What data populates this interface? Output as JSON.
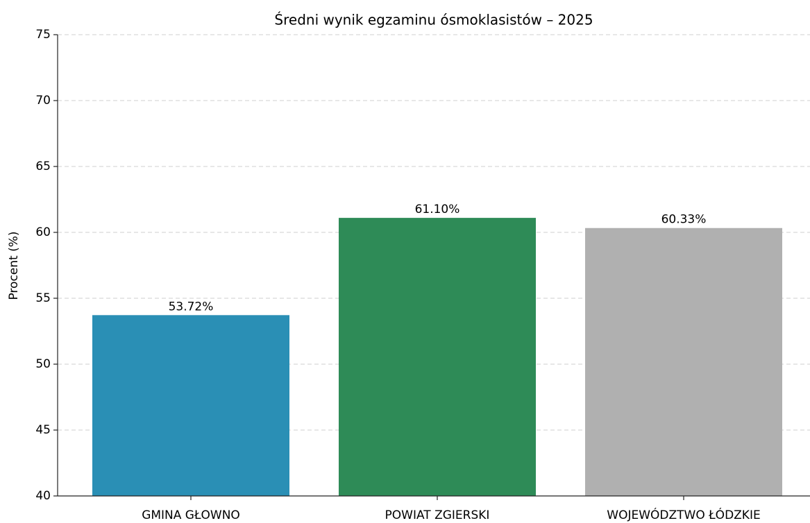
{
  "chart_data": {
    "type": "bar",
    "title": "Średni wynik egzaminu ósmoklasistów – 2025",
    "ylabel": "Procent (%)",
    "categories": [
      "GMINA GŁOWNO",
      "POWIAT ZGIERSKI",
      "WOJEWÓDZTWO ŁÓDZKIE"
    ],
    "values": [
      53.72,
      61.1,
      60.33
    ],
    "value_labels": [
      "53.72%",
      "61.10%",
      "60.33%"
    ],
    "colors": [
      "#2a8fb5",
      "#2e8b57",
      "#b0b0b0"
    ],
    "ylim": [
      40,
      75
    ],
    "yticks": [
      40,
      45,
      50,
      55,
      60,
      65,
      70,
      75
    ],
    "grid": true
  }
}
